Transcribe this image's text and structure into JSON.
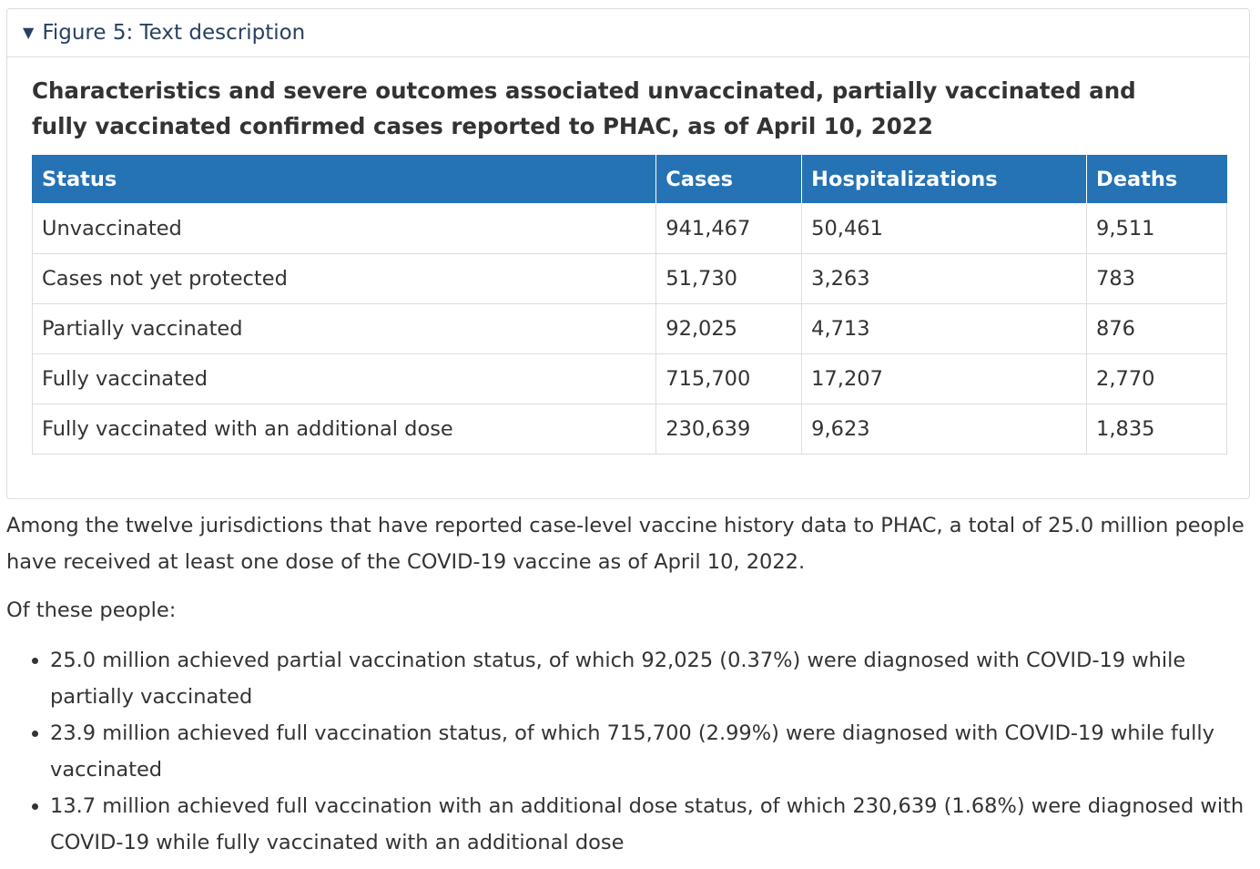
{
  "details": {
    "summary_label": "Figure 5: Text description",
    "table_title": "Characteristics and severe outcomes associated unvaccinated, partially vaccinated and fully vaccinated confirmed cases reported to PHAC, as of April 10, 2022",
    "columns": [
      "Status",
      "Cases",
      "Hospitalizations",
      "Deaths"
    ],
    "rows": [
      [
        "Unvaccinated",
        "941,467",
        "50,461",
        "9,511"
      ],
      [
        "Cases not yet protected",
        "51,730",
        "3,263",
        "783"
      ],
      [
        "Partially vaccinated",
        "92,025",
        "4,713",
        "876"
      ],
      [
        "Fully vaccinated",
        "715,700",
        "17,207",
        "2,770"
      ],
      [
        "Fully vaccinated with an additional dose",
        "230,639",
        "9,623",
        "1,835"
      ]
    ]
  },
  "content": {
    "paragraph1": "Among the twelve jurisdictions that have reported case-level vaccine history data to PHAC, a total of 25.0 million people have received at least one dose of the COVID-19 vaccine as of April 10, 2022.",
    "paragraph2": "Of these people:",
    "bullets": [
      "25.0 million achieved partial vaccination status, of which 92,025 (0.37%) were diagnosed with COVID-19 while partially vaccinated",
      "23.9 million achieved full vaccination status, of which 715,700 (2.99%) were diagnosed with COVID-19 while fully vaccinated",
      "13.7 million achieved full vaccination with an additional dose status, of which 230,639 (1.68%) were diagnosed with COVID-19 while fully vaccinated with an additional dose"
    ]
  },
  "colors": {
    "header_bg": "#2572b4",
    "summary_text": "#284162",
    "border": "#dddddd"
  }
}
